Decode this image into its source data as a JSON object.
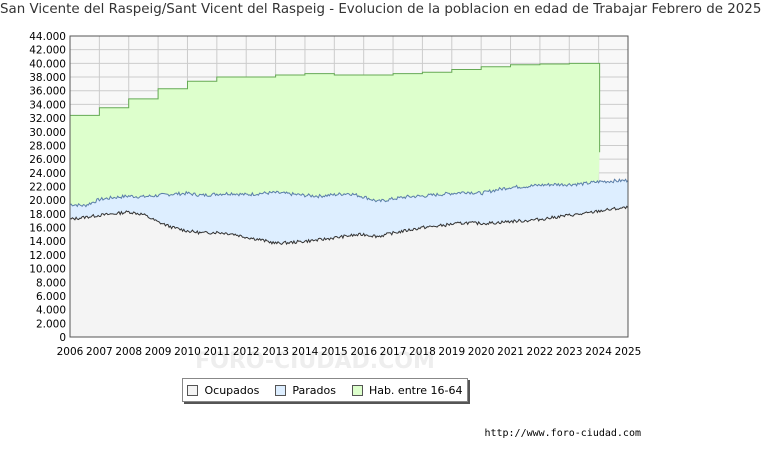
{
  "chart_data": {
    "type": "area",
    "title": "San Vicente del Raspeig/Sant Vicent del Raspeig - Evolucion de la poblacion en edad de Trabajar Febrero de 2025",
    "xlabel": "",
    "ylabel": "",
    "ylim": [
      0,
      44000
    ],
    "xlim": [
      2006,
      2025
    ],
    "x_ticks": [
      "2006",
      "2007",
      "2008",
      "2009",
      "2010",
      "2011",
      "2012",
      "2013",
      "2014",
      "2015",
      "2016",
      "2017",
      "2018",
      "2019",
      "2020",
      "2021",
      "2022",
      "2023",
      "2024",
      "2025"
    ],
    "y_ticks": [
      "0",
      "2.000",
      "4.000",
      "6.000",
      "8.000",
      "10.000",
      "12.000",
      "14.000",
      "16.000",
      "18.000",
      "20.000",
      "22.000",
      "24.000",
      "26.000",
      "28.000",
      "30.000",
      "32.000",
      "34.000",
      "36.000",
      "38.000",
      "40.000",
      "42.000",
      "44.000"
    ],
    "grid": true,
    "legend_position": "bottom-center",
    "series": [
      {
        "name": "Ocupados",
        "color": "#f4f4f4",
        "line_color": "#333333",
        "x": [
          2006,
          2006.5,
          2007,
          2007.5,
          2008,
          2008.5,
          2009,
          2009.5,
          2010,
          2010.5,
          2011,
          2011.5,
          2012,
          2012.5,
          2013,
          2013.5,
          2014,
          2014.5,
          2015,
          2015.5,
          2016,
          2016.5,
          2017,
          2017.5,
          2018,
          2018.5,
          2019,
          2019.5,
          2020,
          2020.5,
          2021,
          2021.5,
          2022,
          2022.5,
          2023,
          2023.5,
          2024,
          2024.5,
          2025
        ],
        "values": [
          17200,
          17500,
          17800,
          18000,
          18300,
          17900,
          16800,
          16000,
          15500,
          15200,
          15300,
          15100,
          14600,
          14200,
          13700,
          13800,
          14000,
          14200,
          14500,
          14800,
          15000,
          14700,
          15200,
          15600,
          16000,
          16200,
          16500,
          16700,
          16600,
          16700,
          16900,
          17000,
          17200,
          17500,
          17800,
          18000,
          18400,
          18700,
          18900
        ]
      },
      {
        "name": "Parados",
        "color": "#ddeeff",
        "line_color": "#5a7ea8",
        "x": [
          2006,
          2006.5,
          2007,
          2007.5,
          2008,
          2008.5,
          2009,
          2009.5,
          2010,
          2010.5,
          2011,
          2011.5,
          2012,
          2012.5,
          2013,
          2013.5,
          2014,
          2014.5,
          2015,
          2015.5,
          2016,
          2016.5,
          2017,
          2017.5,
          2018,
          2018.5,
          2019,
          2019.5,
          2020,
          2020.5,
          2021,
          2021.5,
          2022,
          2022.5,
          2023,
          2023.5,
          2024,
          2024.5,
          2025
        ],
        "values": [
          19400,
          19200,
          20100,
          20400,
          20600,
          20500,
          20700,
          20900,
          21000,
          20700,
          20900,
          21000,
          20800,
          21000,
          21100,
          20900,
          20700,
          20600,
          20800,
          21000,
          20500,
          19800,
          20200,
          20500,
          20600,
          20800,
          21000,
          21200,
          21000,
          21500,
          21900,
          22000,
          22200,
          22300,
          22300,
          22400,
          22700,
          22800,
          22900
        ]
      },
      {
        "name": "Hab. entre 16-64",
        "color": "#ddffcc",
        "line_color": "#66aa55",
        "x": [
          2006,
          2007,
          2008,
          2009,
          2010,
          2011,
          2012,
          2013,
          2014,
          2015,
          2016,
          2017,
          2018,
          2019,
          2020,
          2021,
          2022,
          2023,
          2024
        ],
        "values": [
          32400,
          33500,
          34800,
          36300,
          37400,
          38000,
          38000,
          38300,
          38500,
          38300,
          38300,
          38500,
          38700,
          39100,
          39500,
          39800,
          39900,
          40000,
          40000
        ],
        "end_drop": 27000
      }
    ]
  },
  "legend": {
    "items": [
      {
        "label": "Ocupados",
        "color": "#f4f4f4"
      },
      {
        "label": "Parados",
        "color": "#ddeeff"
      },
      {
        "label": "Hab. entre 16-64",
        "color": "#ddffcc"
      }
    ]
  },
  "watermark": "FORO-CIUDAD.COM",
  "source_url": "http://www.foro-ciudad.com"
}
